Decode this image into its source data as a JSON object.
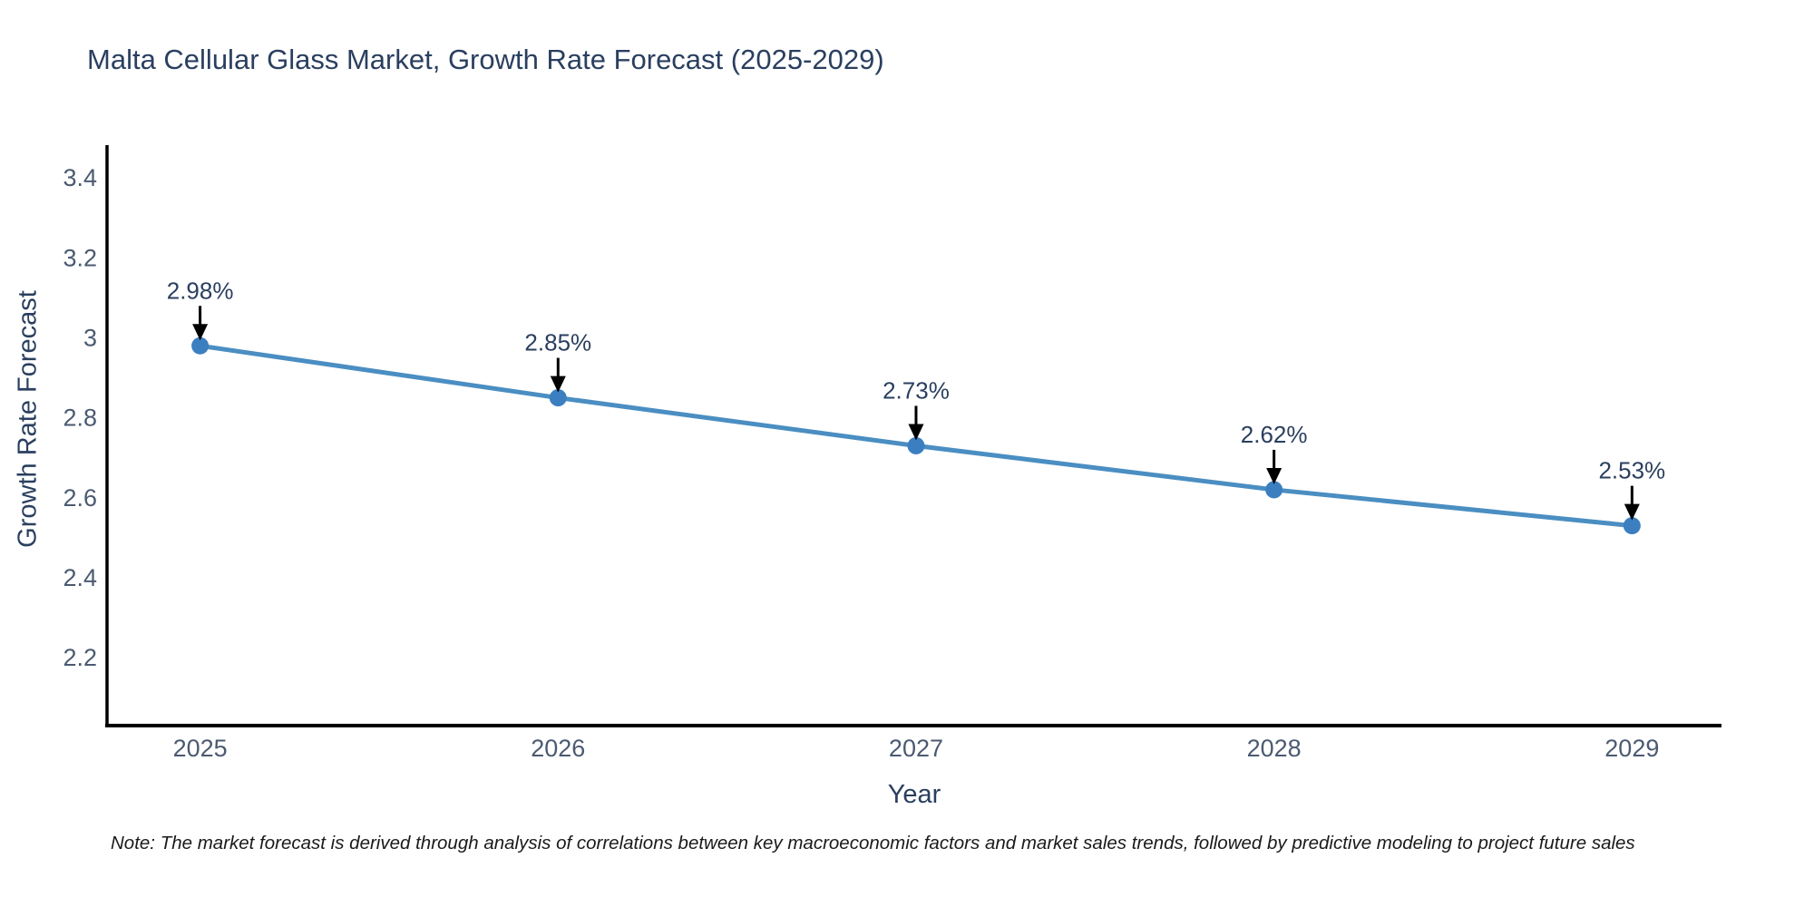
{
  "note": "Note: The market forecast is derived through analysis of correlations between key macroeconomic factors and market sales trends, followed by predictive modeling to project future sales",
  "chart_data": {
    "type": "line",
    "title": "Malta Cellular Glass Market, Growth Rate Forecast (2025-2029)",
    "xlabel": "Year",
    "ylabel": "Growth Rate Forecast",
    "x": [
      2025,
      2026,
      2027,
      2028,
      2029
    ],
    "series": [
      {
        "name": "Growth Rate Forecast",
        "values": [
          2.98,
          2.85,
          2.73,
          2.62,
          2.53
        ],
        "point_labels": [
          "2.98%",
          "2.85%",
          "2.73%",
          "2.62%",
          "2.53%"
        ]
      }
    ],
    "x_tick_labels": [
      "2025",
      "2026",
      "2027",
      "2028",
      "2029"
    ],
    "y_ticks": [
      3.4,
      3.2,
      3.0,
      2.8,
      2.6,
      2.4,
      2.2
    ],
    "y_tick_labels": [
      "3.4",
      "3.2",
      "3",
      "2.8",
      "2.6",
      "2.4",
      "2.2"
    ],
    "xlim": [
      2024.74,
      2029.25
    ],
    "ylim": [
      2.03,
      3.482
    ],
    "grid": false,
    "legend": false,
    "annotations_have_arrows": true,
    "colors": {
      "line": "#4a8ec2",
      "marker": "#3c7fc0",
      "axis": "#000000",
      "arrow": "#000000",
      "tick_text": "#4b5a71",
      "label_text": "#2a3f5f"
    }
  }
}
